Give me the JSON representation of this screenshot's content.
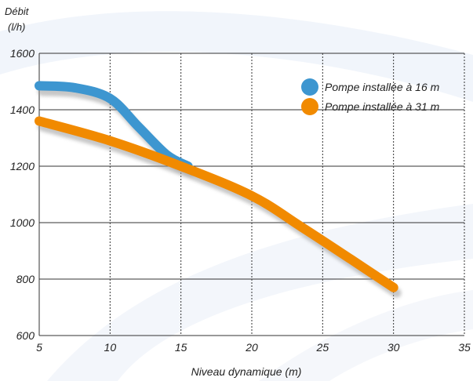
{
  "chart_data": {
    "type": "line",
    "ylabel": "Débit",
    "ylabel_unit": "(l/h)",
    "xlabel": "Niveau dynamique (m)",
    "xlim": [
      5,
      35
    ],
    "ylim": [
      600,
      1600
    ],
    "x_ticks": [
      5,
      10,
      15,
      20,
      25,
      30,
      35
    ],
    "y_ticks": [
      600,
      800,
      1000,
      1200,
      1400,
      1600
    ],
    "x_tick_labels": [
      "5",
      "10",
      "15",
      "20",
      "25",
      "30",
      "35"
    ],
    "y_tick_labels": [
      "600",
      "800",
      "1000",
      "1200",
      "1400",
      "1600"
    ],
    "grid": "dashed vertical, solid horizontal",
    "legend_position": "top-right",
    "series": [
      {
        "name": "Pompe installée à 16 m",
        "color": "#3d96d0",
        "x": [
          5,
          7.5,
          10,
          12,
          14,
          15.5
        ],
        "y": [
          1485,
          1478,
          1440,
          1340,
          1240,
          1200
        ]
      },
      {
        "name": "Pompe installée à 31 m",
        "color": "#f18a00",
        "x": [
          5,
          10,
          15,
          20,
          23.5,
          27,
          30
        ],
        "y": [
          1360,
          1290,
          1200,
          1095,
          985,
          870,
          770
        ]
      }
    ]
  }
}
